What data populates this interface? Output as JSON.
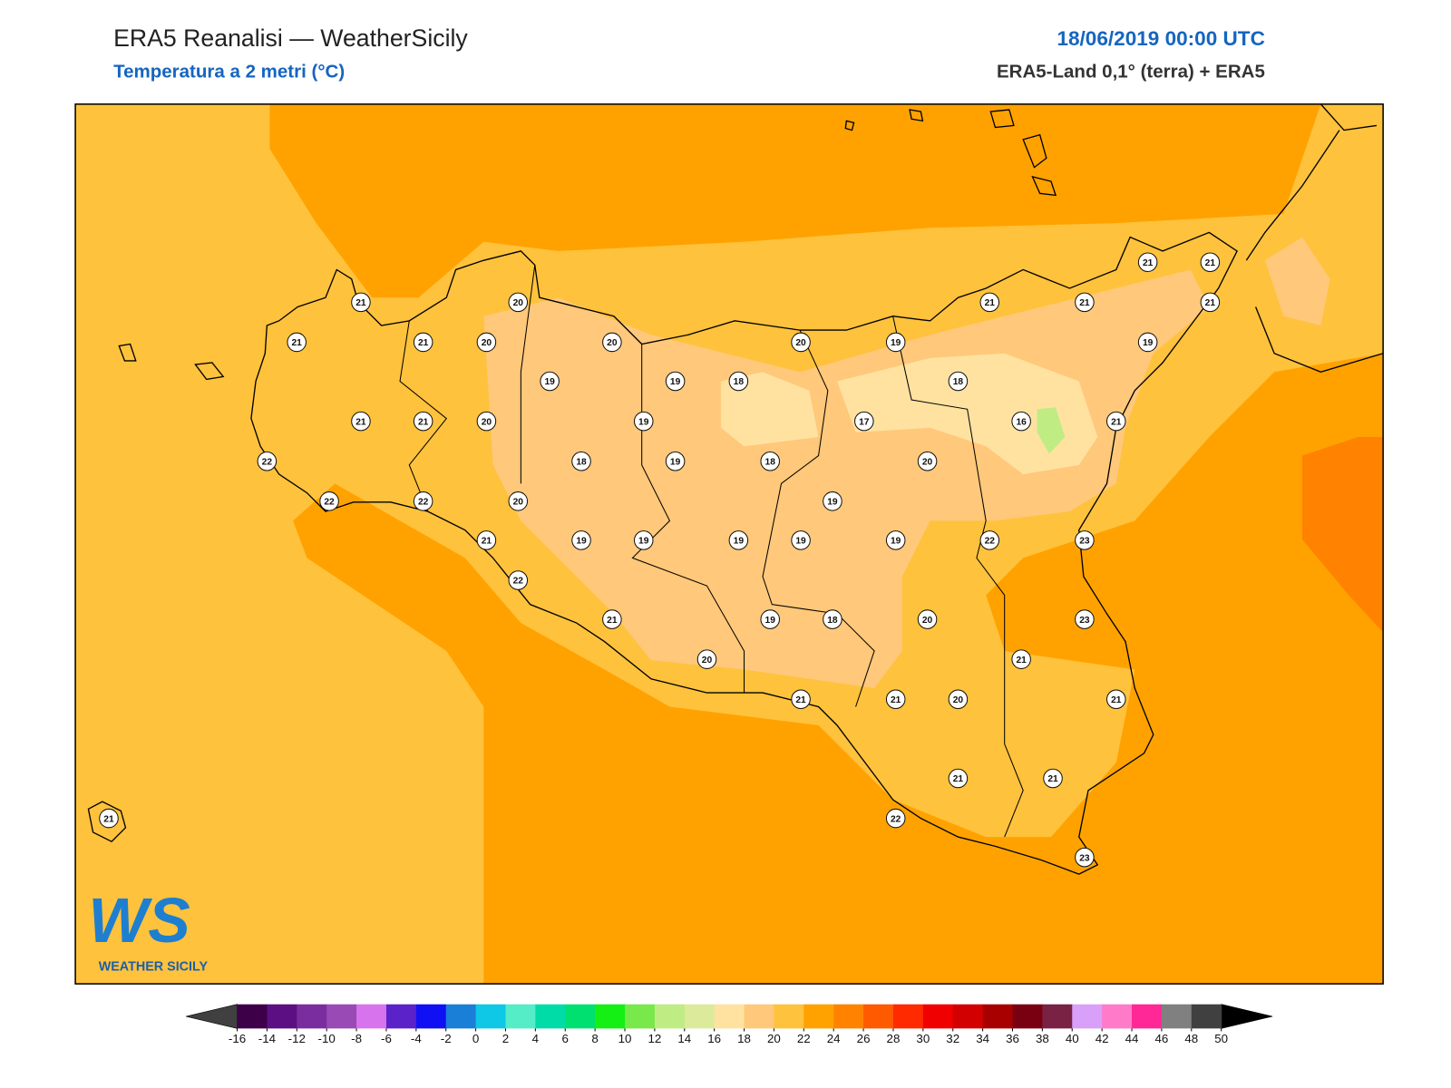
{
  "header": {
    "title": "ERA5 Reanalisi — WeatherSicily",
    "subtitle": "Temperatura a 2 metri (°C)",
    "date": "18/06/2019 00:00 UTC",
    "source": "ERA5-Land 0,1° (terra) + ERA5"
  },
  "logo": {
    "mark": "WS",
    "name": "WEATHER SICILY"
  },
  "stations": [
    21,
    20,
    21,
    21,
    20,
    20,
    20,
    19,
    21,
    21,
    21,
    21,
    21,
    19,
    19,
    19,
    18,
    18,
    21,
    21,
    20,
    19,
    17,
    16,
    21,
    22,
    18,
    19,
    18,
    20,
    22,
    22,
    20,
    19,
    21,
    19,
    19,
    19,
    19,
    19,
    22,
    23,
    22,
    21,
    19,
    18,
    20,
    23,
    20,
    21,
    21,
    21,
    20,
    21,
    21,
    21,
    21,
    22,
    23
  ],
  "colorbar": {
    "labels": [
      -16,
      -14,
      -12,
      -10,
      -8,
      -6,
      -4,
      -2,
      0,
      2,
      4,
      6,
      8,
      10,
      12,
      14,
      16,
      18,
      20,
      22,
      24,
      26,
      28,
      30,
      32,
      34,
      36,
      38,
      40,
      42,
      44,
      46,
      48,
      50
    ],
    "colors": [
      "#3d0048",
      "#5c0f82",
      "#7a2d9e",
      "#9a4ab5",
      "#d873ee",
      "#5a22c8",
      "#1010f5",
      "#1a7fd6",
      "#0ec8e6",
      "#55ecc8",
      "#00dca8",
      "#00e070",
      "#14f014",
      "#78e84a",
      "#c0ec84",
      "#dcea9c",
      "#ffe2a0",
      "#ffc87a",
      "#ffc23c",
      "#ffa200",
      "#ff8200",
      "#ff5a00",
      "#ff2a00",
      "#f00000",
      "#d20000",
      "#a80000",
      "#780010",
      "#7a2244",
      "#d8a0f8",
      "#ff7ac8",
      "#ff2896",
      "#808080",
      "#404040"
    ],
    "under": "#404040",
    "over": "#000000"
  }
}
